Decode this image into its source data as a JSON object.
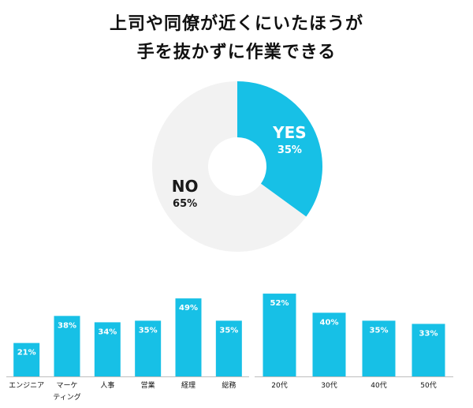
{
  "title_lines": [
    "上司や同僚が近くにいたほうが",
    "手を抜かずに作業できる"
  ],
  "colors": {
    "accent": "#17c0e6",
    "donut_rest": "#f2f2f2",
    "axis": "#bdbdbd"
  },
  "chart_data": [
    {
      "type": "pie",
      "subtype": "donut",
      "slices": [
        {
          "label": "YES",
          "value": 35,
          "value_label": "35%",
          "color": "#17c0e6"
        },
        {
          "label": "NO",
          "value": 65,
          "value_label": "65%",
          "color": "#f2f2f2"
        }
      ]
    },
    {
      "type": "bar",
      "categories": [
        "エンジニア",
        "マーケティング",
        "人事",
        "営業",
        "経理",
        "総務"
      ],
      "category_lines": [
        [
          "エンジニア"
        ],
        [
          "マーケ",
          "ティング"
        ],
        [
          "人事"
        ],
        [
          "営業"
        ],
        [
          "経理"
        ],
        [
          "総務"
        ]
      ],
      "values": [
        21,
        38,
        34,
        35,
        49,
        35
      ],
      "value_labels": [
        "21%",
        "38%",
        "34%",
        "35%",
        "49%",
        "35%"
      ],
      "ylim": [
        0,
        56
      ],
      "color": "#17c0e6"
    },
    {
      "type": "bar",
      "categories": [
        "20代",
        "30代",
        "40代",
        "50代"
      ],
      "category_lines": [
        [
          "20代"
        ],
        [
          "30代"
        ],
        [
          "40代"
        ],
        [
          "50代"
        ]
      ],
      "values": [
        52,
        40,
        35,
        33
      ],
      "value_labels": [
        "52%",
        "40%",
        "35%",
        "33%"
      ],
      "ylim": [
        0,
        56
      ],
      "color": "#17c0e6"
    }
  ]
}
